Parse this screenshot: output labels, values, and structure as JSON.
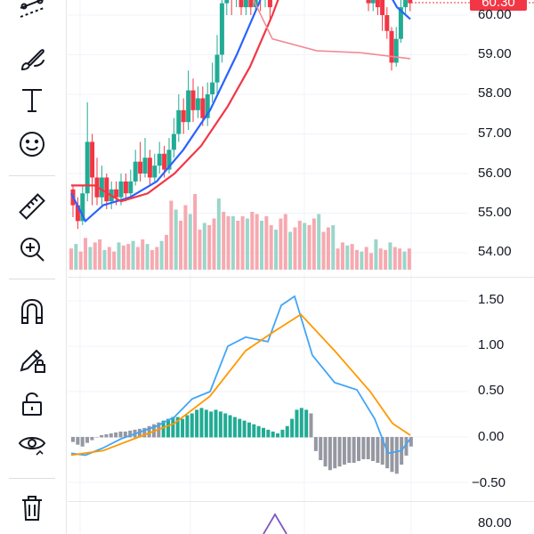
{
  "colors": {
    "up": "#22ab94",
    "down": "#f23645",
    "up_volume": "#9ad6ca",
    "down_volume": "#f7a9b0",
    "ma_fast": "#2962ff",
    "ma_slow": "#f23645",
    "ma_long": "#f28b94",
    "macd_line": "#42a5f5",
    "signal_line": "#ff9800",
    "hist_positive": "#22ab94",
    "hist_negative": "#9598a1",
    "rsi_line": "#7e57c2",
    "grid": "#f0f3fa"
  },
  "toolbar": {
    "tools": [
      {
        "name": "trend-line-tool",
        "icon": "trend-line-icon"
      },
      {
        "name": "brush-tool",
        "icon": "brush-icon"
      },
      {
        "name": "text-tool",
        "icon": "text-icon"
      },
      {
        "name": "emoji-tool",
        "icon": "smiley-icon"
      },
      {
        "name": "measure-tool",
        "icon": "ruler-icon"
      },
      {
        "name": "zoom-tool",
        "icon": "zoom-in-icon"
      },
      {
        "name": "magnet-tool",
        "icon": "magnet-icon"
      },
      {
        "name": "lock-drawing-tool",
        "icon": "pencil-lock-icon"
      },
      {
        "name": "lock-all-tool",
        "icon": "unlock-icon"
      },
      {
        "name": "hide-tool",
        "icon": "eye-icon"
      },
      {
        "name": "remove-tool",
        "icon": "trash-icon"
      }
    ]
  },
  "price_axis": {
    "current_price": "60.30",
    "labels": [
      "60.00",
      "59.00",
      "58.00",
      "57.00",
      "56.00",
      "55.00",
      "54.00"
    ]
  },
  "macd_axis": {
    "labels": [
      "1.50",
      "1.00",
      "0.50",
      "0.00",
      "−0.50"
    ]
  },
  "rsi_axis": {
    "labels": [
      "80.00"
    ]
  }
}
